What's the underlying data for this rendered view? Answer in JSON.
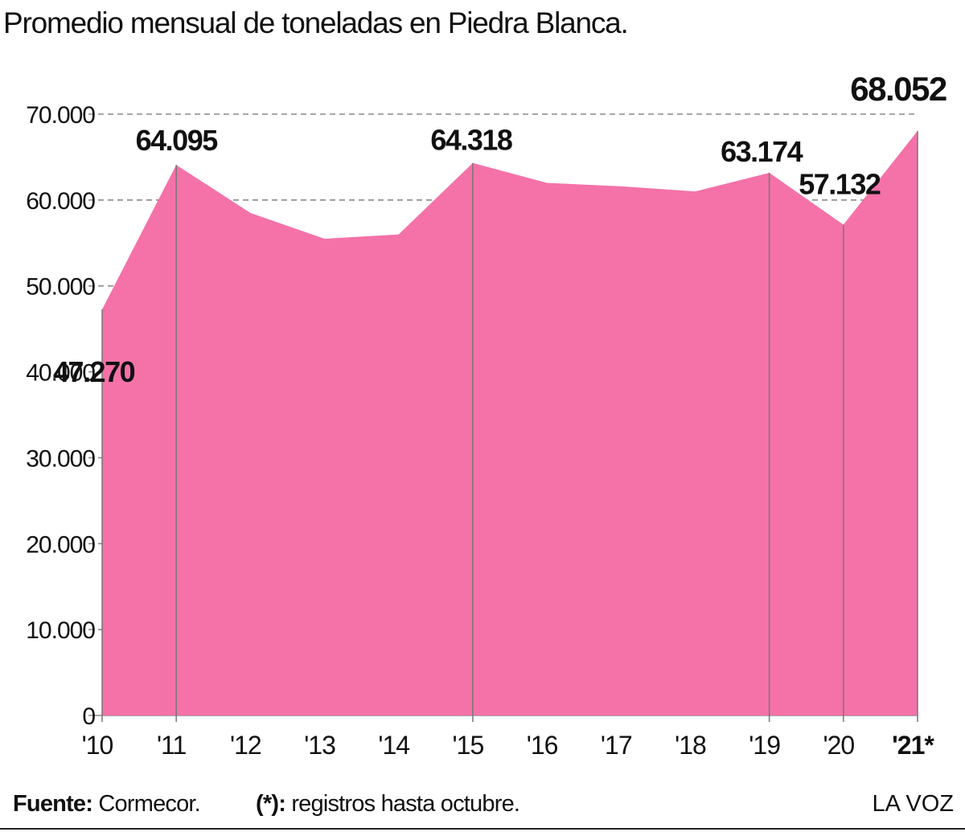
{
  "title": "Promedio mensual de toneladas en Piedra Blanca.",
  "footer": {
    "source_label": "Fuente:",
    "source_value": " Cormecor.",
    "note_label": "(*):",
    "note_value": " registros hasta octubre.",
    "brand": "LA VOZ"
  },
  "colors": {
    "area": "#f472a8",
    "grid": "#8a8a8a",
    "text": "#111111"
  },
  "chart_data": {
    "type": "area",
    "title": "Promedio mensual de toneladas en Piedra Blanca.",
    "xlabel": "",
    "ylabel": "",
    "ylim": [
      0,
      70000
    ],
    "yticks": [
      0,
      10000,
      20000,
      30000,
      40000,
      50000,
      60000,
      70000
    ],
    "ytick_labels": [
      "0",
      "10.000",
      "20.000",
      "30.000",
      "40.000",
      "50.000",
      "60.000",
      "70.000"
    ],
    "grid": true,
    "categories": [
      "'10",
      "'11",
      "'12",
      "'13",
      "'14",
      "'15",
      "'16",
      "'17",
      "'18",
      "'19",
      "'20",
      "'21*"
    ],
    "values": [
      47270,
      64095,
      58500,
      55500,
      56000,
      64318,
      62000,
      61600,
      61000,
      63174,
      57132,
      68052
    ],
    "annotations": [
      {
        "index": 0,
        "text": "47.270"
      },
      {
        "index": 1,
        "text": "64.095"
      },
      {
        "index": 5,
        "text": "64.318"
      },
      {
        "index": 9,
        "text": "63.174"
      },
      {
        "index": 10,
        "text": "57.132"
      },
      {
        "index": 11,
        "text": "68.052"
      }
    ],
    "highlighted_category": "'21*"
  }
}
